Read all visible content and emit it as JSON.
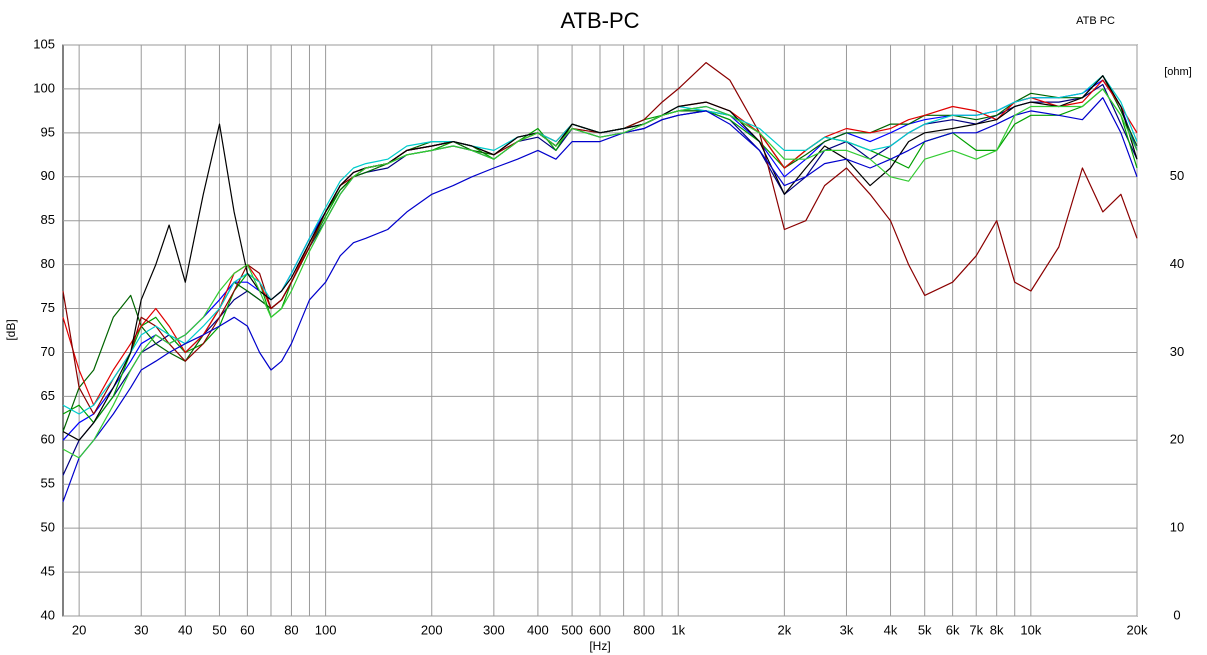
{
  "chart_data": {
    "type": "line",
    "title": "ATB-PC",
    "corner_label": "ATB PC",
    "xlabel": "[Hz]",
    "ylabel": "[dB]",
    "y2label": "[ohm]",
    "xscale": "log",
    "grid": true,
    "xlim": [
      18,
      20000
    ],
    "ylim": [
      40,
      105
    ],
    "y2lim": [
      0,
      65
    ],
    "xticks": [
      20,
      30,
      40,
      50,
      60,
      80,
      100,
      200,
      300,
      400,
      500,
      600,
      800,
      {
        "value": 1000,
        "label": "1k"
      },
      {
        "value": 2000,
        "label": "2k"
      },
      {
        "value": 3000,
        "label": "3k"
      },
      {
        "value": 4000,
        "label": "4k"
      },
      {
        "value": 5000,
        "label": "5k"
      },
      {
        "value": 6000,
        "label": "6k"
      },
      {
        "value": 7000,
        "label": "7k"
      },
      {
        "value": 8000,
        "label": "8k"
      },
      {
        "value": 10000,
        "label": "10k"
      },
      {
        "value": 20000,
        "label": "20k"
      }
    ],
    "x_minor_grid": [
      70,
      90,
      700,
      900,
      9000
    ],
    "yticks": [
      40,
      45,
      50,
      55,
      60,
      65,
      70,
      75,
      80,
      85,
      90,
      95,
      100,
      105
    ],
    "y2ticks": [
      0,
      10,
      20,
      30,
      40,
      50
    ],
    "x": [
      18,
      20,
      22,
      25,
      28,
      30,
      33,
      36,
      40,
      45,
      50,
      55,
      60,
      65,
      70,
      75,
      80,
      90,
      100,
      110,
      120,
      130,
      150,
      170,
      200,
      230,
      260,
      300,
      350,
      400,
      450,
      500,
      600,
      700,
      800,
      900,
      1000,
      1200,
      1400,
      1700,
      2000,
      2300,
      2600,
      3000,
      3500,
      4000,
      4500,
      5000,
      6000,
      7000,
      8000,
      9000,
      10000,
      12000,
      14000,
      16000,
      18000,
      20000
    ],
    "series": [
      {
        "color": "#0000ff",
        "values": [
          60,
          62,
          63,
          66,
          69,
          71,
          72,
          71,
          72,
          74,
          76,
          78,
          78,
          77,
          76,
          77,
          79,
          83,
          86,
          89,
          90.5,
          91,
          91.5,
          93,
          93.5,
          94,
          93.5,
          92.5,
          94.5,
          95,
          93.5,
          96,
          95,
          95.5,
          96,
          97,
          97.5,
          98,
          97,
          94,
          90,
          92,
          94,
          95,
          94,
          95,
          96,
          96.5,
          97,
          97,
          97.5,
          98.5,
          99,
          99,
          99.5,
          101,
          98,
          93
        ]
      },
      {
        "color": "#000080",
        "values": [
          56,
          60,
          62,
          65,
          68,
          70,
          71,
          72,
          70,
          72,
          74,
          76,
          77,
          76,
          75,
          76,
          78,
          82,
          85,
          88,
          90,
          90.5,
          91,
          92.5,
          93,
          93.5,
          93,
          92,
          94,
          94.5,
          93,
          95.5,
          94.5,
          95,
          95.5,
          96.5,
          97,
          97.5,
          96.5,
          93,
          88,
          90,
          93,
          94,
          92,
          93.5,
          95,
          96,
          96.5,
          96,
          97,
          98,
          98.5,
          98.5,
          99,
          100.5,
          96,
          92
        ]
      },
      {
        "color": "#00a000",
        "values": [
          63,
          64,
          62,
          65,
          70,
          73,
          74,
          72,
          70,
          71,
          73,
          77,
          79,
          78,
          74,
          75,
          78,
          82,
          85.5,
          88.5,
          90,
          91,
          91.5,
          92.5,
          93,
          94,
          93.5,
          92,
          94,
          95.5,
          93,
          96,
          95,
          95.5,
          96.5,
          97,
          97.5,
          97.5,
          96.5,
          94,
          91,
          93,
          94.5,
          94,
          93,
          92,
          91,
          94,
          95,
          93,
          93,
          96,
          97,
          97,
          98,
          100,
          97,
          91
        ]
      },
      {
        "color": "#006400",
        "values": [
          61,
          66,
          68,
          74,
          76.5,
          73,
          71,
          70,
          69,
          72,
          75,
          78,
          77,
          76,
          75,
          76,
          78,
          82,
          86,
          88.5,
          90,
          90.5,
          91.5,
          93,
          94,
          94,
          93,
          92.5,
          94.5,
          95,
          93.5,
          96,
          95,
          95.5,
          96,
          97,
          97.5,
          97.5,
          97,
          95,
          91,
          92.5,
          94,
          95,
          95,
          96,
          96,
          97,
          97,
          96.5,
          97,
          98.5,
          99.5,
          99,
          99,
          101.5,
          97.5,
          93.5
        ]
      },
      {
        "color": "#e00000",
        "values": [
          74,
          68,
          64,
          68,
          71,
          73,
          75,
          73,
          70,
          72,
          75,
          79,
          80,
          78,
          75,
          76,
          78,
          82.5,
          86,
          89,
          90.5,
          91,
          91.5,
          93,
          93.5,
          94,
          93.5,
          92.5,
          94.5,
          95,
          94,
          96,
          95,
          95.5,
          96,
          97,
          98,
          98.5,
          97.5,
          95,
          91,
          93,
          94.5,
          95.5,
          95,
          95.5,
          96.5,
          97,
          98,
          97.5,
          96.5,
          98.5,
          99,
          98,
          98.5,
          101,
          98,
          95
        ]
      },
      {
        "color": "#8b0000",
        "values": [
          77,
          66,
          63,
          67,
          70,
          74,
          73,
          71,
          69,
          71,
          74,
          77,
          80,
          79,
          75,
          76,
          78,
          82,
          86,
          89,
          90,
          91,
          91.5,
          93,
          93.5,
          94,
          93.5,
          92.5,
          94,
          95,
          93.5,
          95.5,
          95,
          95.5,
          96.5,
          98.5,
          100,
          103,
          101,
          95,
          84,
          85,
          89,
          91,
          88,
          85,
          80,
          76.5,
          78,
          81,
          85,
          78,
          77,
          82,
          91,
          86,
          88,
          83
        ]
      },
      {
        "color": "#00cccc",
        "values": [
          64,
          63,
          64,
          67,
          70,
          72,
          73,
          72,
          71,
          73,
          75,
          78,
          79,
          78,
          76,
          77,
          79,
          83,
          86.5,
          89.5,
          91,
          91.5,
          92,
          93.5,
          94,
          94,
          93.5,
          93,
          94.5,
          95,
          94,
          96,
          95,
          95.5,
          96,
          97,
          98,
          97.5,
          97,
          95.5,
          93,
          93,
          94.5,
          94,
          93,
          93.5,
          95,
          96,
          97,
          97,
          97.5,
          98.5,
          99,
          99,
          99.5,
          101.5,
          98.5,
          94
        ]
      },
      {
        "color": "#000000",
        "values": [
          61,
          60,
          62,
          66,
          70,
          76,
          80,
          84.5,
          78,
          88,
          96,
          86,
          79,
          77,
          76,
          77,
          78.5,
          82.5,
          86,
          89,
          90.5,
          91,
          91.5,
          93,
          93.5,
          94,
          93.5,
          92.5,
          94.5,
          95,
          93.5,
          96,
          95,
          95.5,
          96,
          97,
          98,
          98.5,
          97.5,
          94,
          88,
          91,
          93.5,
          92,
          89,
          91,
          94,
          95,
          95.5,
          96,
          96.5,
          98,
          98.5,
          98,
          99,
          101.5,
          98,
          92
        ]
      },
      {
        "color": "#0000cc",
        "values": [
          53,
          58,
          60,
          63,
          66,
          68,
          69,
          70,
          71,
          72,
          73,
          74,
          73,
          70,
          68,
          69,
          71,
          76,
          78,
          81,
          82.5,
          83,
          84,
          86,
          88,
          89,
          90,
          91,
          92,
          93,
          92,
          94,
          94,
          95,
          95.5,
          96.5,
          97,
          97.5,
          96,
          93,
          89,
          90,
          91.5,
          92,
          91,
          92,
          93,
          94,
          95,
          95,
          96,
          97,
          97.5,
          97,
          96.5,
          99,
          95,
          90
        ]
      },
      {
        "color": "#33cc33",
        "values": [
          59,
          58,
          60,
          64,
          68,
          70,
          72,
          71,
          72,
          74,
          77,
          79,
          80,
          77,
          74,
          75,
          77,
          81.5,
          85,
          88,
          90,
          91,
          91.5,
          92.5,
          93,
          93.5,
          93,
          92,
          94,
          95,
          93.5,
          95.5,
          94.5,
          95,
          96,
          97,
          97.5,
          98,
          97,
          95,
          92,
          92,
          93,
          93,
          92,
          90,
          89.5,
          92,
          93,
          92,
          93,
          97,
          98,
          98,
          98,
          100,
          97,
          93
        ]
      }
    ]
  }
}
